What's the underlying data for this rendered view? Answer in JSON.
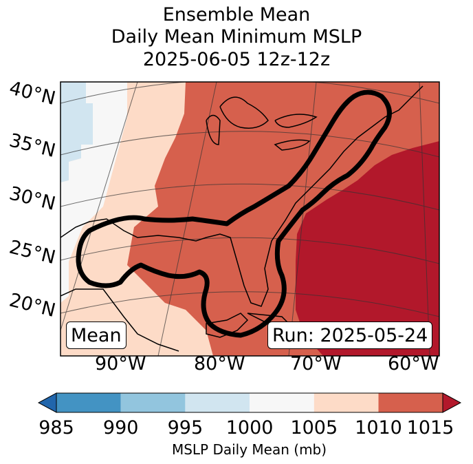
{
  "title": {
    "line1": "Ensemble Mean",
    "line2": "Daily Mean Minimum MSLP",
    "line3": "2025-06-05 12z-12z"
  },
  "lat_labels": [
    "40°N",
    "35°N",
    "30°N",
    "25°N",
    "20°N"
  ],
  "lon_labels": [
    "90°W",
    "80°W",
    "70°W",
    "60°W"
  ],
  "mean_label": "Mean",
  "run_label": "Run: 2025-05-24",
  "colorbar": {
    "ticks": [
      "985",
      "990",
      "995",
      "1000",
      "1005",
      "1010",
      "1015"
    ],
    "label": "MSLP Daily Mean (mb)",
    "colors": [
      "#2166ac",
      "#4393c3",
      "#92c5de",
      "#d1e5f0",
      "#f7f7f7",
      "#fddbc7",
      "#d6604d",
      "#b2182b"
    ],
    "extend": "both"
  },
  "chart_data": {
    "type": "heatmap",
    "title": "Ensemble Mean Daily Mean Minimum MSLP 2025-06-05 12z-12z",
    "variable": "MSLP Daily Mean (mb)",
    "levels": [
      985,
      990,
      995,
      1000,
      1005,
      1010,
      1015
    ],
    "extend": "both",
    "lat_range": [
      20,
      40
    ],
    "lon_range": [
      -95,
      -60
    ],
    "regions": [
      {
        "range": "995-1000",
        "location": "northwest corner"
      },
      {
        "range": "1000-1005",
        "location": "western edge"
      },
      {
        "range": "1005-1010",
        "location": "central plains and Gulf west"
      },
      {
        "range": "1010-1015",
        "location": "eastern US, Gulf of Mexico, Florida"
      },
      {
        "range": ">1015",
        "location": "western Atlantic"
      }
    ]
  }
}
